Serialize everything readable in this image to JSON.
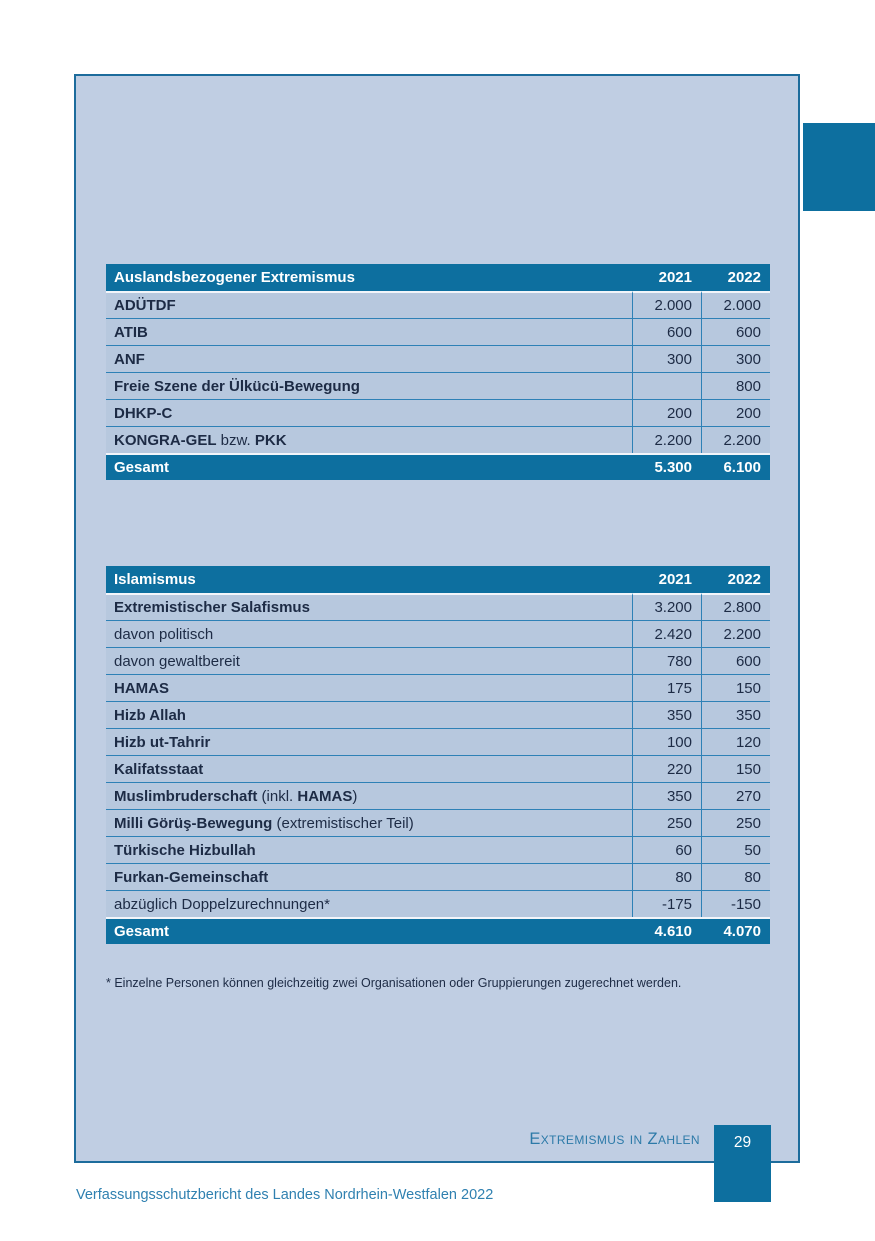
{
  "page": {
    "page_number": "29",
    "footer_caption": "Extremismus in Zahlen",
    "footer_line": "Verfassungsschutzbericht des Landes Nordrhein-Westfalen 2022",
    "footnote": "* Einzelne Personen können gleichzeitig zwei Organisationen oder Gruppierungen zugerechnet werden."
  },
  "colors": {
    "accent_blue": "#0d6f9f",
    "frame_border_blue": "#1d6c9c",
    "page_background": "#c0cee3",
    "row_background": "#b7c8de",
    "grid_line_blue": "#2e81b6",
    "body_text": "#1d2b45",
    "footer_text_blue": "#2c7aa8",
    "header_text": "#ffffff"
  },
  "chart_data": [
    {
      "type": "table",
      "title": "Auslandsbezogener Extremismus",
      "columns": [
        "2021",
        "2022"
      ],
      "rows": [
        {
          "parts": [
            {
              "text": "ADÜTDF",
              "bold": true
            }
          ],
          "v2021": "2.000",
          "v2022": "2.000"
        },
        {
          "parts": [
            {
              "text": "ATIB",
              "bold": true
            }
          ],
          "v2021": "600",
          "v2022": "600"
        },
        {
          "parts": [
            {
              "text": "ANF",
              "bold": true
            }
          ],
          "v2021": "300",
          "v2022": "300"
        },
        {
          "parts": [
            {
              "text": "Freie Szene der Ülkücü-Bewegung",
              "bold": true
            }
          ],
          "v2021": "",
          "v2022": "800"
        },
        {
          "parts": [
            {
              "text": "DHKP-C",
              "bold": true
            }
          ],
          "v2021": "200",
          "v2022": "200"
        },
        {
          "parts": [
            {
              "text": "KONGRA-GEL",
              "bold": true
            },
            {
              "text": " bzw. ",
              "bold": false
            },
            {
              "text": "PKK",
              "bold": true
            }
          ],
          "v2021": "2.200",
          "v2022": "2.200"
        }
      ],
      "total": {
        "label": "Gesamt",
        "v2021": "5.300",
        "v2022": "6.100"
      }
    },
    {
      "type": "table",
      "title": "Islamismus",
      "columns": [
        "2021",
        "2022"
      ],
      "rows": [
        {
          "parts": [
            {
              "text": "Extremistischer Salafismus",
              "bold": true
            }
          ],
          "v2021": "3.200",
          "v2022": "2.800"
        },
        {
          "parts": [
            {
              "text": "davon politisch",
              "bold": false
            }
          ],
          "v2021": "2.420",
          "v2022": "2.200"
        },
        {
          "parts": [
            {
              "text": "davon gewaltbereit",
              "bold": false
            }
          ],
          "v2021": "780",
          "v2022": "600"
        },
        {
          "parts": [
            {
              "text": "HAMAS",
              "bold": true
            }
          ],
          "v2021": "175",
          "v2022": "150"
        },
        {
          "parts": [
            {
              "text": "Hizb Allah",
              "bold": true
            }
          ],
          "v2021": "350",
          "v2022": "350"
        },
        {
          "parts": [
            {
              "text": "Hizb ut-Tahrir",
              "bold": true
            }
          ],
          "v2021": "100",
          "v2022": "120"
        },
        {
          "parts": [
            {
              "text": "Kalifatsstaat",
              "bold": true
            }
          ],
          "v2021": "220",
          "v2022": "150"
        },
        {
          "parts": [
            {
              "text": "Muslimbruderschaft",
              "bold": true
            },
            {
              "text": " (inkl. ",
              "bold": false
            },
            {
              "text": "HAMAS",
              "bold": true
            },
            {
              "text": ")",
              "bold": false
            }
          ],
          "v2021": "350",
          "v2022": "270"
        },
        {
          "parts": [
            {
              "text": "Milli Görüş-Bewegung",
              "bold": true
            },
            {
              "text": " (extremistischer Teil)",
              "bold": false
            }
          ],
          "v2021": "250",
          "v2022": "250"
        },
        {
          "parts": [
            {
              "text": "Türkische Hizbullah",
              "bold": true
            }
          ],
          "v2021": "60",
          "v2022": "50"
        },
        {
          "parts": [
            {
              "text": "Furkan-Gemeinschaft",
              "bold": true
            }
          ],
          "v2021": "80",
          "v2022": "80"
        },
        {
          "parts": [
            {
              "text": "abzüglich Doppelzurechnungen*",
              "bold": false
            }
          ],
          "v2021": "-175",
          "v2022": "-150"
        }
      ],
      "total": {
        "label": "Gesamt",
        "v2021": "4.610",
        "v2022": "4.070"
      }
    }
  ]
}
